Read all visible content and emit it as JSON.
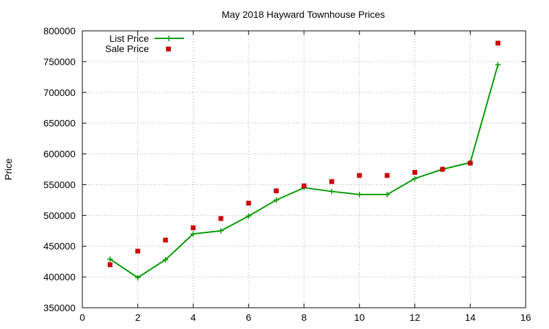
{
  "chart_data": {
    "type": "line",
    "title": "May 2018 Hayward Townhouse Prices",
    "xlabel": "",
    "ylabel": "Price",
    "xlim": [
      0,
      16
    ],
    "ylim": [
      350000,
      800000
    ],
    "x_ticks": [
      0,
      2,
      4,
      6,
      8,
      10,
      12,
      14,
      16
    ],
    "y_ticks": [
      350000,
      400000,
      450000,
      500000,
      550000,
      600000,
      650000,
      700000,
      750000,
      800000
    ],
    "grid": true,
    "legend_position": "top-left",
    "series": [
      {
        "name": "List Price",
        "style": "line-with-plus-markers",
        "color": "#009900",
        "x": [
          1,
          2,
          3,
          4,
          5,
          6,
          7,
          8,
          9,
          10,
          11,
          12,
          13,
          14,
          15
        ],
        "values": [
          429000,
          399000,
          428000,
          470000,
          475000,
          499000,
          525000,
          545000,
          539000,
          534000,
          534000,
          560000,
          575000,
          586000,
          745000
        ]
      },
      {
        "name": "Sale Price",
        "style": "square-markers",
        "color": "#cc0000",
        "x": [
          1,
          2,
          3,
          4,
          5,
          6,
          7,
          8,
          9,
          10,
          11,
          12,
          13,
          14,
          15
        ],
        "values": [
          420000,
          442000,
          460000,
          480000,
          495000,
          520000,
          540000,
          548000,
          555000,
          565000,
          565000,
          570000,
          575000,
          585000,
          780000
        ]
      }
    ]
  }
}
